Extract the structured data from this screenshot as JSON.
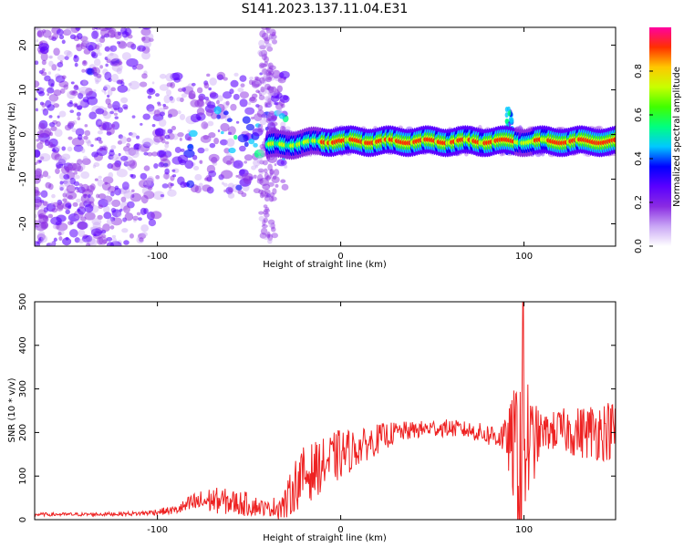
{
  "title": "S141.2023.137.11.04.E31",
  "chart_data": [
    {
      "type": "heatmap",
      "xlabel": "Height of straight line (km)",
      "ylabel": "Frequency (Hz)",
      "xlim": [
        -167,
        150
      ],
      "ylim": [
        -25,
        24
      ],
      "x_ticks": [
        -100,
        0,
        100
      ],
      "y_ticks": [
        -20,
        -10,
        0,
        10,
        20
      ],
      "colorbar": {
        "label": "Normalized spectral amplitude",
        "range": [
          0,
          1
        ],
        "ticks": [
          0.0,
          0.2,
          0.4,
          0.6,
          0.8
        ],
        "colormap": [
          "#ffffff",
          "#c9a6f5",
          "#8a2be2",
          "#5a00ff",
          "#0000ff",
          "#00c8ff",
          "#00ff80",
          "#40ff00",
          "#c8ff00",
          "#ffc800",
          "#ff3000",
          "#ff00a0"
        ]
      },
      "features": {
        "noise_region_x": [
          -167,
          -40
        ],
        "signal_band": {
          "x_start": -40,
          "x_end": 150,
          "frequency_hz": -1.5,
          "peak_amplitude": 0.95
        },
        "spike_x": [
          -40,
          93
        ]
      }
    },
    {
      "type": "line",
      "xlabel": "Height of straight line (km)",
      "ylabel": "SNR (10 * v/v)",
      "xlim": [
        -167,
        150
      ],
      "ylim": [
        0,
        500
      ],
      "x_ticks": [
        -100,
        0,
        100
      ],
      "y_ticks": [
        0,
        100,
        200,
        300,
        400,
        500
      ],
      "color": "#ee2222",
      "series": [
        {
          "x": [
            -167,
            -140,
            -110,
            -90,
            -80,
            -70,
            -60,
            -50,
            -40,
            -30,
            -25,
            -20,
            -10,
            0,
            10,
            20,
            30,
            40,
            50,
            60,
            70,
            80,
            90,
            95,
            98,
            100,
            103,
            110,
            120,
            130,
            140,
            150
          ],
          "mean": [
            12,
            12,
            14,
            22,
            38,
            45,
            40,
            35,
            25,
            35,
            80,
            100,
            125,
            150,
            165,
            185,
            200,
            205,
            210,
            210,
            205,
            195,
            190,
            160,
            120,
            200,
            170,
            200,
            205,
            200,
            205,
            205
          ],
          "spread": [
            4,
            4,
            5,
            10,
            25,
            30,
            30,
            28,
            15,
            40,
            60,
            70,
            60,
            60,
            40,
            35,
            25,
            20,
            20,
            20,
            20,
            25,
            40,
            150,
            380,
            300,
            120,
            40,
            50,
            60,
            70,
            70
          ]
        }
      ]
    }
  ]
}
